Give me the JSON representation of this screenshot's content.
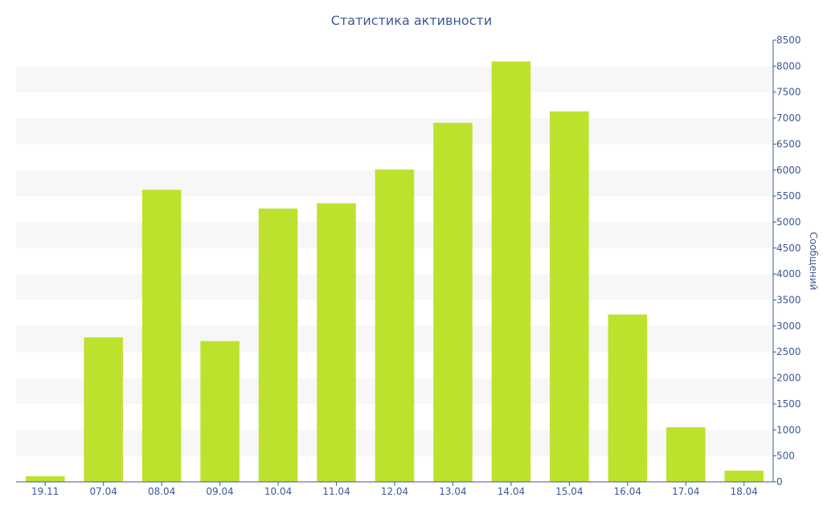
{
  "chart_data": {
    "type": "bar",
    "title": "Статистика активности",
    "ylabel": "Сообщений",
    "xlabel": "",
    "categories": [
      "19.11",
      "07.04",
      "08.04",
      "09.04",
      "10.04",
      "11.04",
      "12.04",
      "13.04",
      "14.04",
      "15.04",
      "16.04",
      "17.04",
      "18.04"
    ],
    "values": [
      110,
      2780,
      5620,
      2710,
      5260,
      5360,
      6010,
      6910,
      8090,
      7130,
      3220,
      1050,
      215
    ],
    "ylim": [
      0,
      8500
    ],
    "yticks": [
      "0",
      "500",
      "1000",
      "1500",
      "2000",
      "2500",
      "3000",
      "3500",
      "4000",
      "4500",
      "5000",
      "5500",
      "6000",
      "6500",
      "7000",
      "7500",
      "8000",
      "8500"
    ],
    "y_axis_side": "right",
    "grid": "alternating horizontal bands",
    "bar_color": "#bde22d",
    "band_color": "#f7f7f7",
    "text_color": "#3e5894"
  }
}
